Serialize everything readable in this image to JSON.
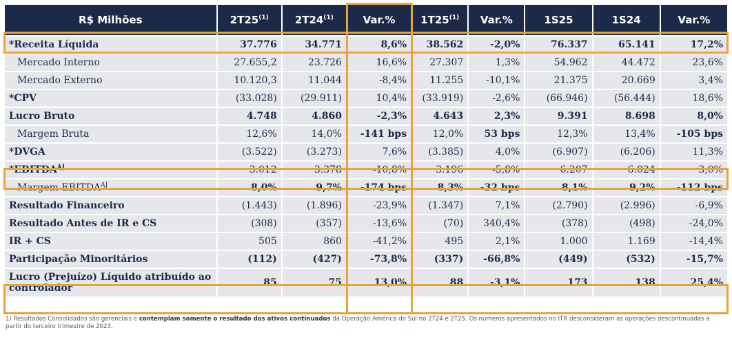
{
  "headers": [
    {
      "text": "R$ Milhões",
      "sup": ""
    },
    {
      "text": "2T25",
      "sup": "(1)"
    },
    {
      "text": "2T24",
      "sup": "(1)"
    },
    {
      "text": "Var.%",
      "sup": ""
    },
    {
      "text": "1T25",
      "sup": "(1)"
    },
    {
      "text": "Var.%",
      "sup": ""
    },
    {
      "text": "1S25",
      "sup": ""
    },
    {
      "text": "1S24",
      "sup": ""
    },
    {
      "text": "Var.%",
      "sup": ""
    }
  ],
  "rows": [
    {
      "label": "*Receita Líquida",
      "sup": "",
      "bold": true,
      "sub": false,
      "values": [
        "37.776",
        "34.771",
        "8,6%",
        "38.562",
        "-2,0%",
        "76.337",
        "65.141",
        "17,2%"
      ],
      "bold_values": [
        true,
        true,
        true,
        true,
        true,
        true,
        true,
        true
      ]
    },
    {
      "label": "Mercado Interno",
      "sup": "",
      "bold": false,
      "sub": true,
      "values": [
        "27.655,2",
        "23.726",
        "16,6%",
        "27.307",
        "1,3%",
        "54.962",
        "44.472",
        "23,6%"
      ],
      "bold_values": [
        false,
        false,
        false,
        false,
        false,
        false,
        false,
        false
      ]
    },
    {
      "label": "Mercado Externo",
      "sup": "",
      "bold": false,
      "sub": true,
      "values": [
        "10.120,3",
        "11.044",
        "-8,4%",
        "11.255",
        "-10,1%",
        "21.375",
        "20.669",
        "3,4%"
      ],
      "bold_values": [
        false,
        false,
        false,
        false,
        false,
        false,
        false,
        false
      ]
    },
    {
      "label": "*CPV",
      "sup": "",
      "bold": true,
      "sub": false,
      "values": [
        "(33.028)",
        "(29.911)",
        "10,4%",
        "(33.919)",
        "-2,6%",
        "(66.946)",
        "(56.444)",
        "18,6%"
      ],
      "bold_values": [
        false,
        false,
        false,
        false,
        false,
        false,
        false,
        false
      ]
    },
    {
      "label": "Lucro Bruto",
      "sup": "",
      "bold": true,
      "sub": false,
      "values": [
        "4.748",
        "4.860",
        "-2,3%",
        "4.643",
        "2,3%",
        "9.391",
        "8.698",
        "8,0%"
      ],
      "bold_values": [
        true,
        true,
        true,
        true,
        true,
        true,
        true,
        true
      ]
    },
    {
      "label": "Margem Bruta",
      "sup": "",
      "bold": false,
      "sub": true,
      "values": [
        "12,6%",
        "14,0%",
        "-141 bps",
        "12,0%",
        "53 bps",
        "12,3%",
        "13,4%",
        "-105 bps"
      ],
      "bold_values": [
        false,
        false,
        true,
        false,
        true,
        false,
        false,
        true
      ]
    },
    {
      "label": "*DVGA",
      "sup": "",
      "bold": true,
      "sub": false,
      "values": [
        "(3.522)",
        "(3.273)",
        "7,6%",
        "(3.385)",
        "4,0%",
        "(6.907)",
        "(6.206)",
        "11,3%"
      ],
      "bold_values": [
        false,
        false,
        false,
        false,
        false,
        false,
        false,
        false
      ]
    },
    {
      "label": "*EBITDA",
      "sup": "AJ",
      "bold": true,
      "sub": false,
      "values": [
        "3.012",
        "3.378",
        "-10,8%",
        "3.196",
        "-5,8%",
        "6.207",
        "6.024",
        "3,0%"
      ],
      "bold_values": [
        false,
        false,
        false,
        false,
        false,
        false,
        false,
        false
      ]
    },
    {
      "label": "Margem EBITDA",
      "sup": "AJ",
      "bold": false,
      "sub": true,
      "values": [
        "8,0%",
        "9,7%",
        "-174 bps",
        "8,3%",
        "-32 bps",
        "8,1%",
        "9,2%",
        "-112 bps"
      ],
      "bold_values": [
        true,
        true,
        true,
        true,
        true,
        true,
        true,
        true
      ]
    },
    {
      "label": "Resultado Financeiro",
      "sup": "",
      "bold": true,
      "sub": false,
      "values": [
        "(1.443)",
        "(1.896)",
        "-23,9%",
        "(1.347)",
        "7,1%",
        "(2.790)",
        "(2.996)",
        "-6,9%"
      ],
      "bold_values": [
        false,
        false,
        false,
        false,
        false,
        false,
        false,
        false
      ]
    },
    {
      "label": "Resultado Antes de IR e CS",
      "sup": "",
      "bold": true,
      "sub": false,
      "values": [
        "(308)",
        "(357)",
        "-13,6%",
        "(70)",
        "340,4%",
        "(378)",
        "(498)",
        "-24,0%"
      ],
      "bold_values": [
        false,
        false,
        false,
        false,
        false,
        false,
        false,
        false
      ]
    },
    {
      "label": "IR + CS",
      "sup": "",
      "bold": true,
      "sub": false,
      "values": [
        "505",
        "860",
        "-41,2%",
        "495",
        "2,1%",
        "1.000",
        "1.169",
        "-14,4%"
      ],
      "bold_values": [
        false,
        false,
        false,
        false,
        false,
        false,
        false,
        false
      ]
    },
    {
      "label": "Participação Minoritários",
      "sup": "",
      "bold": true,
      "sub": false,
      "values": [
        "(112)",
        "(427)",
        "-73,8%",
        "(337)",
        "-66,8%",
        "(449)",
        "(532)",
        "-15,7%"
      ],
      "bold_values": [
        true,
        true,
        true,
        true,
        true,
        true,
        true,
        true
      ]
    },
    {
      "label": "Lucro (Prejuízo) Líquido atribuído ao controlador",
      "sup": "",
      "bold": true,
      "sub": false,
      "tall": true,
      "values": [
        "85",
        "75",
        "13,0%",
        "88",
        "-3,1%",
        "173",
        "138",
        "25,4%"
      ],
      "bold_values": [
        true,
        true,
        true,
        true,
        true,
        true,
        true,
        true
      ]
    }
  ],
  "footnote": {
    "part1": "1) Resultados Consolidados são gerenciais e ",
    "part2": "contemplam somente o resultado dos ativos continuados",
    "part3": " da Operação América do Sul no 2T24 e 2T25. Os números apresentados no ITR desconsideram as operações descontinuadas a partir do terceiro trimestre de 2023."
  },
  "colors": {
    "header_bg": "#1c2a4a",
    "cell_bg": "#e6e7ea",
    "highlight": "#e8a33a"
  }
}
